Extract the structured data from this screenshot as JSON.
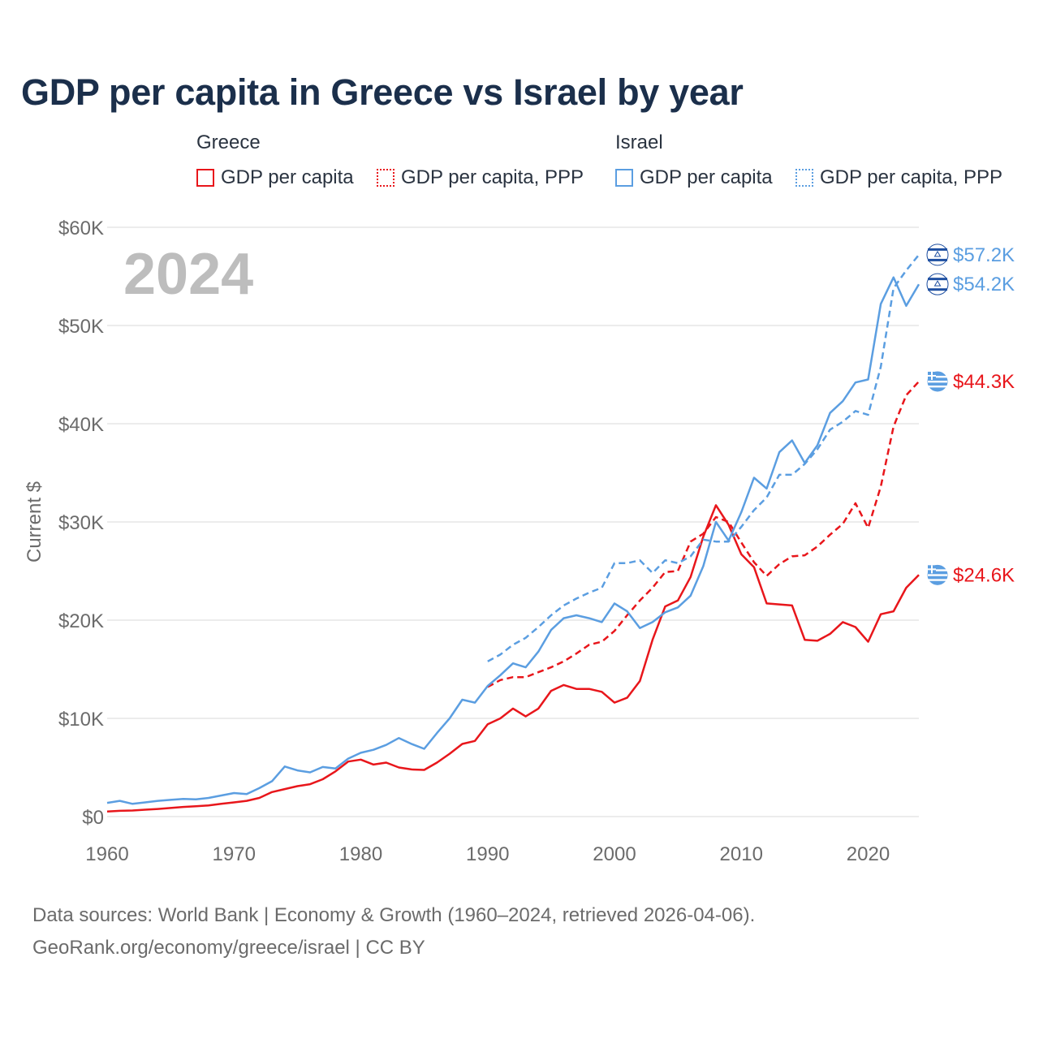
{
  "chart_data": {
    "type": "line",
    "title": "GDP per capita in Greece vs Israel by year",
    "year_label": "2024",
    "ylabel": "Current $",
    "xlabel": "",
    "xlim": [
      1960,
      2024
    ],
    "ylim": [
      0,
      60000
    ],
    "y_ticks": [
      0,
      10000,
      20000,
      30000,
      40000,
      50000,
      60000
    ],
    "y_tick_labels": [
      "$0",
      "$10K",
      "$20K",
      "$30K",
      "$40K",
      "$50K",
      "$60K"
    ],
    "x_ticks": [
      1960,
      1970,
      1980,
      1990,
      2000,
      2010,
      2020
    ],
    "x_tick_labels": [
      "1960",
      "1970",
      "1980",
      "1990",
      "2000",
      "2010",
      "2020"
    ],
    "grid": "horizontal",
    "legend_groups": [
      "Greece",
      "Israel"
    ],
    "series": [
      {
        "name": "GDP per capita",
        "country": "Greece",
        "color": "#e8161b",
        "dashed": false,
        "end_label": "$24.6K",
        "x": [
          1960,
          1961,
          1962,
          1963,
          1964,
          1965,
          1966,
          1967,
          1968,
          1969,
          1970,
          1971,
          1972,
          1973,
          1974,
          1975,
          1976,
          1977,
          1978,
          1979,
          1980,
          1981,
          1982,
          1983,
          1984,
          1985,
          1986,
          1987,
          1988,
          1989,
          1990,
          1991,
          1992,
          1993,
          1994,
          1995,
          1996,
          1997,
          1998,
          1999,
          2000,
          2001,
          2002,
          2003,
          2004,
          2005,
          2006,
          2007,
          2008,
          2009,
          2010,
          2011,
          2012,
          2013,
          2014,
          2015,
          2016,
          2017,
          2018,
          2019,
          2020,
          2021,
          2022,
          2023,
          2024
        ],
        "values": [
          520,
          590,
          620,
          700,
          780,
          880,
          980,
          1060,
          1130,
          1300,
          1450,
          1600,
          1900,
          2500,
          2800,
          3100,
          3300,
          3800,
          4600,
          5600,
          5800,
          5300,
          5500,
          5000,
          4800,
          4750,
          5500,
          6400,
          7400,
          7700,
          9400,
          10000,
          11000,
          10200,
          11000,
          12800,
          13400,
          13000,
          13000,
          12700,
          11600,
          12100,
          13800,
          18000,
          21400,
          22000,
          24400,
          28500,
          31700,
          29700,
          26700,
          25400,
          21700,
          21600,
          21500,
          18000,
          17900,
          18600,
          19800,
          19300,
          17800,
          20600,
          20900,
          23300,
          24600
        ]
      },
      {
        "name": "GDP per capita, PPP",
        "country": "Greece",
        "color": "#e8161b",
        "dashed": true,
        "end_label": "$44.3K",
        "x": [
          1990,
          1991,
          1992,
          1993,
          1994,
          1995,
          1996,
          1997,
          1998,
          1999,
          2000,
          2001,
          2002,
          2003,
          2004,
          2005,
          2006,
          2007,
          2008,
          2009,
          2010,
          2011,
          2012,
          2013,
          2014,
          2015,
          2016,
          2017,
          2018,
          2019,
          2020,
          2021,
          2022,
          2023,
          2024
        ],
        "values": [
          13200,
          13900,
          14200,
          14200,
          14700,
          15200,
          15800,
          16600,
          17500,
          17800,
          18900,
          20500,
          22000,
          23300,
          24900,
          25000,
          28000,
          28800,
          30500,
          30000,
          27900,
          25900,
          24500,
          25700,
          26500,
          26600,
          27500,
          28700,
          29800,
          31900,
          29400,
          33600,
          39700,
          42900,
          44300
        ]
      },
      {
        "name": "GDP per capita",
        "country": "Israel",
        "color": "#5b9ee1",
        "dashed": false,
        "end_label": "$54.2K",
        "x": [
          1960,
          1961,
          1962,
          1963,
          1964,
          1965,
          1966,
          1967,
          1968,
          1969,
          1970,
          1971,
          1972,
          1973,
          1974,
          1975,
          1976,
          1977,
          1978,
          1979,
          1980,
          1981,
          1982,
          1983,
          1984,
          1985,
          1986,
          1987,
          1988,
          1989,
          1990,
          1991,
          1992,
          1993,
          1994,
          1995,
          1996,
          1997,
          1998,
          1999,
          2000,
          2001,
          2002,
          2003,
          2004,
          2005,
          2006,
          2007,
          2008,
          2009,
          2010,
          2011,
          2012,
          2013,
          2014,
          2015,
          2016,
          2017,
          2018,
          2019,
          2020,
          2021,
          2022,
          2023,
          2024
        ],
        "values": [
          1400,
          1600,
          1300,
          1450,
          1600,
          1700,
          1800,
          1750,
          1900,
          2150,
          2400,
          2300,
          2900,
          3600,
          5100,
          4700,
          4500,
          5050,
          4900,
          5900,
          6500,
          6800,
          7300,
          8000,
          7400,
          6900,
          8500,
          10000,
          11900,
          11600,
          13300,
          14400,
          15600,
          15200,
          16800,
          19000,
          20200,
          20500,
          20200,
          19800,
          21700,
          20900,
          19200,
          19800,
          20800,
          21300,
          22500,
          25500,
          30000,
          28100,
          31000,
          34500,
          33400,
          37100,
          38300,
          36000,
          37800,
          41100,
          42300,
          44200,
          44500,
          52200,
          54900,
          52000,
          54200
        ]
      },
      {
        "name": "GDP per capita, PPP",
        "country": "Israel",
        "color": "#5b9ee1",
        "dashed": true,
        "end_label": "$57.2K",
        "x": [
          1990,
          1991,
          1992,
          1993,
          1994,
          1995,
          1996,
          1997,
          1998,
          1999,
          2000,
          2001,
          2002,
          2003,
          2004,
          2005,
          2006,
          2007,
          2008,
          2009,
          2010,
          2011,
          2012,
          2013,
          2014,
          2015,
          2016,
          2017,
          2018,
          2019,
          2020,
          2021,
          2022,
          2023,
          2024
        ],
        "values": [
          15800,
          16500,
          17500,
          18200,
          19300,
          20500,
          21500,
          22200,
          22800,
          23300,
          25800,
          25800,
          26100,
          24800,
          26100,
          25800,
          26500,
          28200,
          28000,
          28000,
          29500,
          31200,
          32500,
          34800,
          34800,
          35900,
          37400,
          39400,
          40200,
          41300,
          40900,
          45800,
          53800,
          55600,
          57200
        ]
      }
    ]
  },
  "legend": {
    "greece_title": "Greece",
    "israel_title": "Israel",
    "greece_gdp": "GDP per capita",
    "greece_ppp": "GDP per capita, PPP",
    "israel_gdp": "GDP per capita",
    "israel_ppp": "GDP per capita, PPP"
  },
  "sources": {
    "line1": "Data sources: World Bank | Economy & Growth (1960–2024, retrieved 2026-04-06).",
    "line2": "GeoRank.org/economy/greece/israel | CC BY"
  },
  "colors": {
    "greece": "#e8161b",
    "israel": "#5b9ee1",
    "title": "#1b2f4b"
  }
}
